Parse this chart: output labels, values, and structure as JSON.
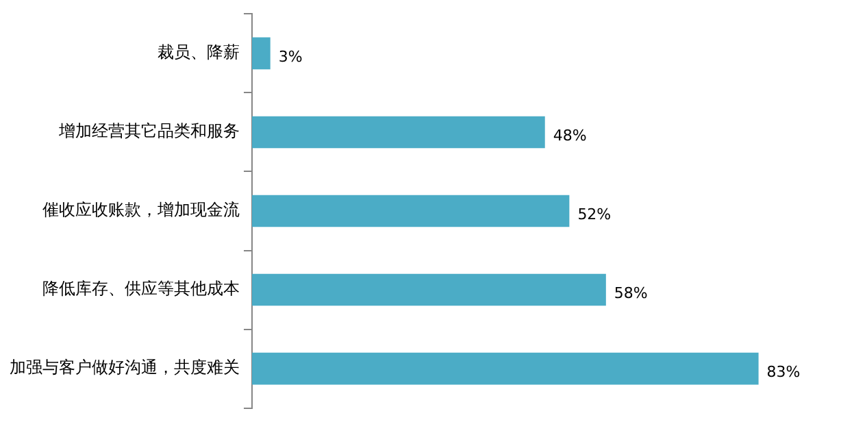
{
  "chart_data": {
    "type": "bar",
    "orientation": "horizontal",
    "categories": [
      "裁员、降薪",
      "增加经营其它品类和服务",
      "催收应收账款，增加现金流",
      "降低库存、供应等其他成本",
      "加强与客户做好沟通，共度难关"
    ],
    "values": [
      3,
      48,
      52,
      58,
      83
    ],
    "value_labels": [
      "3%",
      "48%",
      "52%",
      "58%",
      "83%"
    ],
    "color": "#4bacc6"
  }
}
